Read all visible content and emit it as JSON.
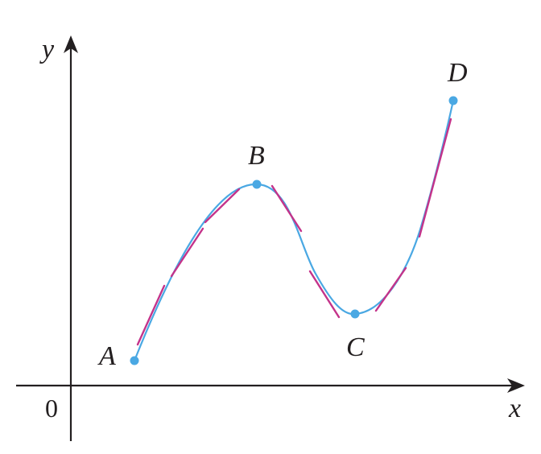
{
  "figure": {
    "axes": {
      "x_label": "x",
      "y_label": "y",
      "origin_label": "0"
    },
    "points": [
      {
        "id": "A",
        "label": "A"
      },
      {
        "id": "B",
        "label": "B"
      },
      {
        "id": "C",
        "label": "C"
      },
      {
        "id": "D",
        "label": "D"
      }
    ],
    "colors": {
      "curve": "#4aa8e3",
      "tangents": "#c4338a",
      "points": "#4aa8e3",
      "axes": "#231f20"
    }
  }
}
